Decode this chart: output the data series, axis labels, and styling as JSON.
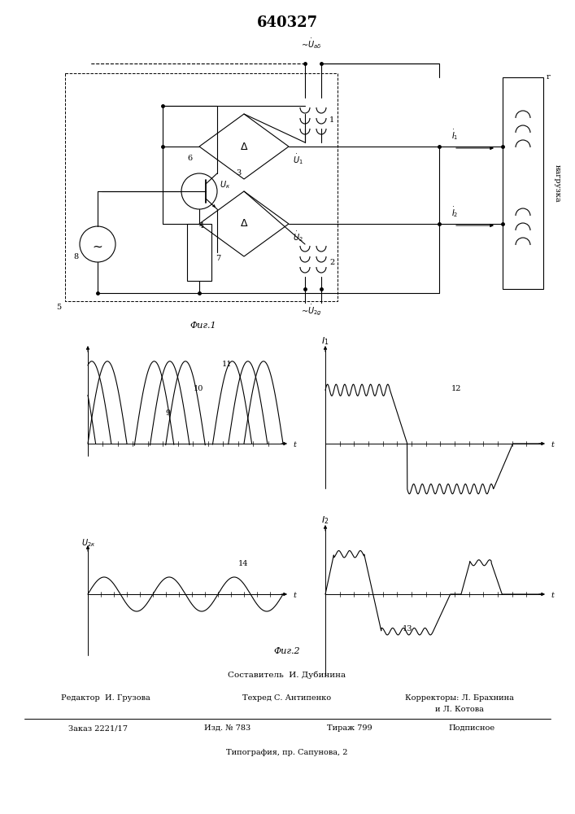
{
  "title": "640327",
  "fig1_label": "Фиг.1",
  "fig2_label": "Фиг.2",
  "bg_color": "#ffffff",
  "footer_lines": [
    "Составитель  И. Дубинина",
    "Редактор  И. Грузова",
    "Техред С. Антипенко",
    "Корректоры: Л. Брахнина",
    "и Л. Котова",
    "Заказ 2221/17",
    "Изд. № 783",
    "Тираж 799",
    "Подписное",
    "Типография, пр. Сапунова, 2"
  ]
}
